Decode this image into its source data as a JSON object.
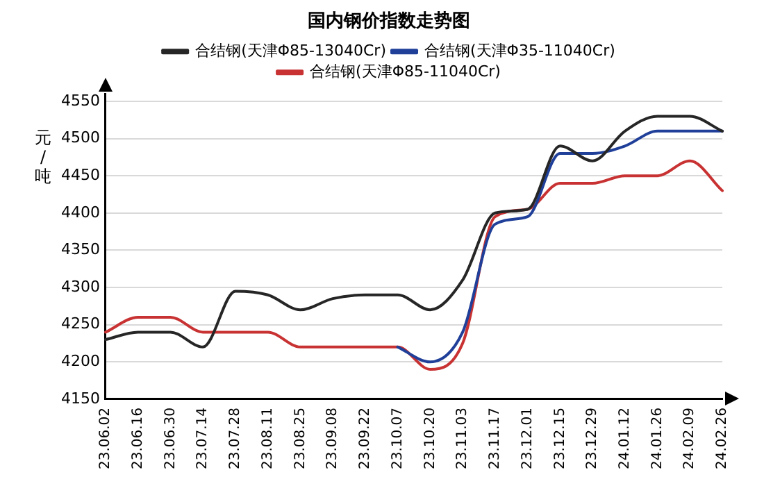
{
  "chart_data": {
    "type": "line",
    "title": "国内钢价指数走势图",
    "ylabel": "元/吨",
    "categories": [
      "23.06.02",
      "23.06.16",
      "23.06.30",
      "23.07.14",
      "23.07.28",
      "23.08.11",
      "23.08.25",
      "23.09.08",
      "23.09.22",
      "23.10.07",
      "23.10.20",
      "23.11.03",
      "23.11.17",
      "23.12.01",
      "23.12.15",
      "23.12.29",
      "24.01.12",
      "24.01.26",
      "24.02.09",
      "24.02.26"
    ],
    "series": [
      {
        "name": "合结钢(天津Φ85-13040Cr)",
        "color": "#262626",
        "values": [
          4230,
          4240,
          4240,
          4220,
          4295,
          4290,
          4270,
          4285,
          4290,
          4290,
          4270,
          4310,
          4400,
          4405,
          4490,
          4470,
          4510,
          4530,
          4530,
          4510
        ]
      },
      {
        "name": "合结钢(天津Φ35-11040Cr)",
        "color": "#1f3f99",
        "values": [
          null,
          null,
          null,
          null,
          null,
          null,
          null,
          null,
          null,
          4220,
          4200,
          4240,
          4385,
          4395,
          4480,
          4480,
          4490,
          4510,
          4510,
          4510
        ]
      },
      {
        "name": "合结钢(天津Φ85-11040Cr)",
        "color": "#c83232",
        "values": [
          4240,
          4260,
          4260,
          4240,
          4240,
          4240,
          4220,
          4220,
          4220,
          4220,
          4190,
          4225,
          4395,
          4405,
          4440,
          4440,
          4450,
          4450,
          4470,
          4430
        ]
      }
    ],
    "ylim": [
      4150,
      4560
    ],
    "yticks": [
      4150,
      4200,
      4250,
      4300,
      4350,
      4400,
      4450,
      4500,
      4550
    ],
    "grid": "y",
    "legend": "top",
    "marker": "none",
    "line_style": "solid"
  }
}
